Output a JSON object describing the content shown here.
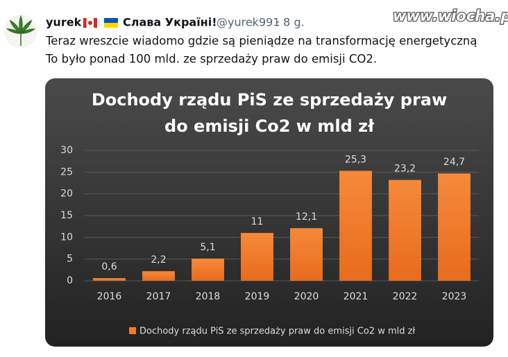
{
  "tweet": {
    "name": "yurek",
    "tagline": "Слава Україні!",
    "handle": "@yurek991",
    "time": "· 8 g.",
    "text": [
      "Teraz wreszcie wiadomo gdzie są pieniądze na transformację energetyczną",
      "To było ponad 100 mld. ze sprzedaży praw do emisji CO2."
    ],
    "watermark": "www.wiocha.pl"
  },
  "chart_data": {
    "type": "bar",
    "title": [
      "Dochody rządu PiS ze sprzedaży praw",
      "do emisji Co2 w mld zł"
    ],
    "categories": [
      "2016",
      "2017",
      "2018",
      "2019",
      "2020",
      "2021",
      "2022",
      "2023"
    ],
    "series": [
      {
        "name": "Dochody rządu PiS ze sprzedaży praw do emisji Co2 w mld zł",
        "color": "#f07d2c",
        "values": [
          0.6,
          2.2,
          5.1,
          11,
          12.1,
          25.3,
          23.2,
          24.7
        ],
        "value_labels": [
          "0,6",
          "2,2",
          "5,1",
          "11",
          "12,1",
          "25,3",
          "23,2",
          "24,7"
        ]
      }
    ],
    "ylim": [
      0,
      30
    ],
    "yticks": [
      0,
      5,
      10,
      15,
      20,
      25,
      30
    ],
    "grid": true,
    "legend": "bottom"
  }
}
